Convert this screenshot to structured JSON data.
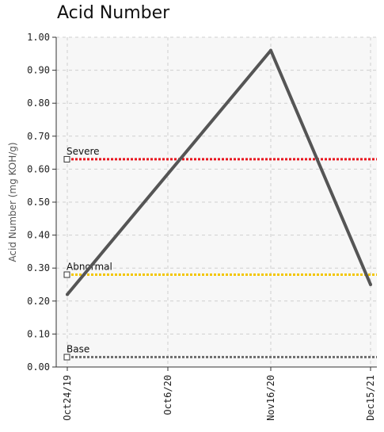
{
  "chart_data": {
    "type": "line",
    "title": "Acid Number",
    "ylabel": "Acid Number (mg KOH/g)",
    "xlabel": "",
    "ylim": [
      0,
      1.0
    ],
    "yticks": [
      "0.00",
      "0.10",
      "0.20",
      "0.30",
      "0.40",
      "0.50",
      "0.60",
      "0.70",
      "0.80",
      "0.90",
      "1.00"
    ],
    "categories": [
      "Oct24/19",
      "Oct6/20",
      "Nov16/20",
      "Dec15/21"
    ],
    "grid": true,
    "series": [
      {
        "values": [
          0.22,
          null,
          0.96,
          0.25
        ],
        "color": "#555555"
      }
    ],
    "thresholds": [
      {
        "name": "Severe",
        "value": 0.63,
        "color": "#e8141e"
      },
      {
        "name": "Abnormal",
        "value": 0.28,
        "color": "#f2c600"
      },
      {
        "name": "Base",
        "value": 0.03,
        "color": "#707070"
      }
    ]
  }
}
